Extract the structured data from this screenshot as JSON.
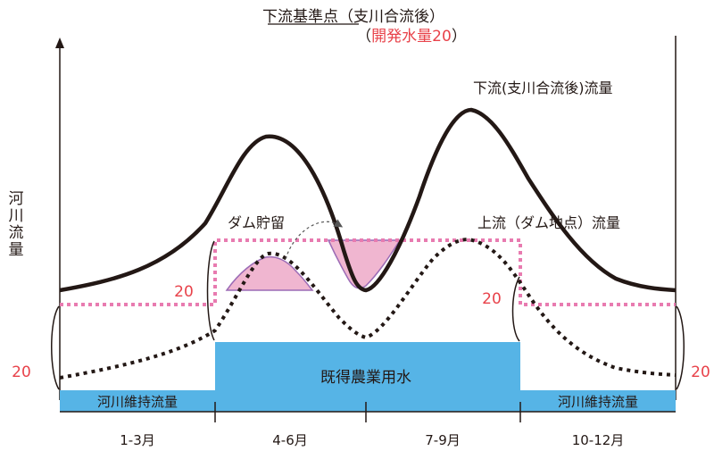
{
  "title": {
    "line1": "下流基準点（支川合流後）",
    "line2_open": "（",
    "line2_red": "開発水量20",
    "line2_close": "）"
  },
  "y_axis_label": [
    "河",
    "川",
    "流",
    "量"
  ],
  "labels": {
    "downstream_flow": "下流(支川合流後)流量",
    "upstream_flow": "上流（ダム地点）流量",
    "dam_storage": "ダム貯留",
    "agricultural_water": "既得農業用水",
    "maintenance_flow_left": "河川維持流量",
    "maintenance_flow_right": "河川維持流量"
  },
  "values": {
    "left_outer": "20",
    "left_inner": "20",
    "right_inner": "20",
    "right_outer": "20"
  },
  "periods": [
    "1-3月",
    "4-6月",
    "7-9月",
    "10-12月"
  ],
  "colors": {
    "line": "#231815",
    "development_line": "#e87bb0",
    "storage_fill": "#f0b6d0",
    "storage_edge": "#9b6bb5",
    "water_blue": "#56b4e6",
    "accent_red": "#e8424a"
  }
}
